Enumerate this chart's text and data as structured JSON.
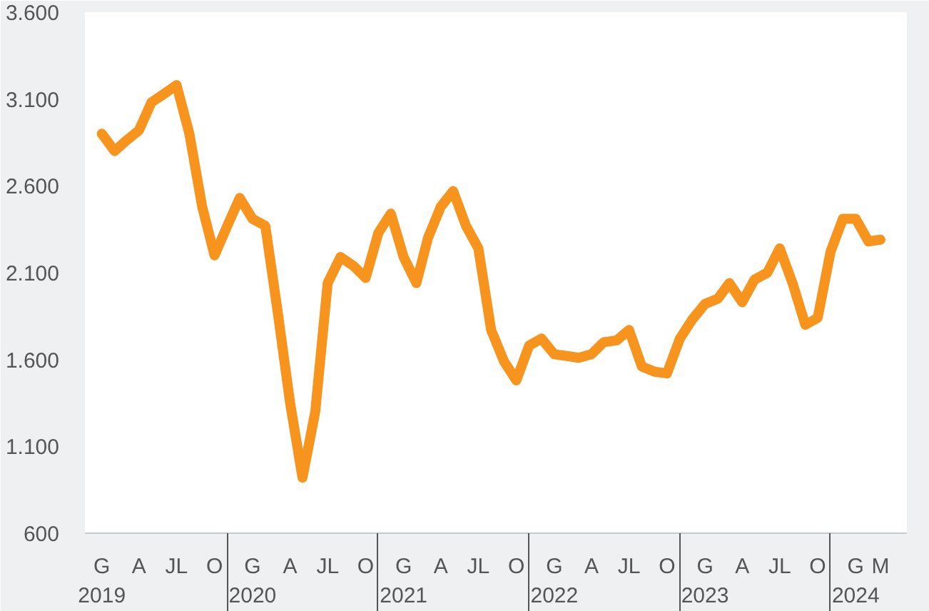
{
  "chart_data": {
    "type": "line",
    "x": [
      "2019-01",
      "2019-02",
      "2019-03",
      "2019-04",
      "2019-05",
      "2019-06",
      "2019-07",
      "2019-08",
      "2019-09",
      "2019-10",
      "2019-11",
      "2019-12",
      "2020-01",
      "2020-02",
      "2020-03",
      "2020-04",
      "2020-05",
      "2020-06",
      "2020-07",
      "2020-08",
      "2020-09",
      "2020-10",
      "2020-11",
      "2020-12",
      "2021-01",
      "2021-02",
      "2021-03",
      "2021-04",
      "2021-05",
      "2021-06",
      "2021-07",
      "2021-08",
      "2021-09",
      "2021-10",
      "2021-11",
      "2021-12",
      "2022-01",
      "2022-02",
      "2022-03",
      "2022-04",
      "2022-05",
      "2022-06",
      "2022-07",
      "2022-08",
      "2022-09",
      "2022-10",
      "2022-11",
      "2022-12",
      "2023-01",
      "2023-02",
      "2023-03",
      "2023-04",
      "2023-05",
      "2023-06",
      "2023-07",
      "2023-08",
      "2023-09",
      "2023-10",
      "2023-11",
      "2023-12",
      "2024-01",
      "2024-02",
      "2024-03"
    ],
    "series": [
      {
        "color": "#f7941d",
        "values": [
          2900,
          2800,
          2860,
          2920,
          3080,
          3130,
          3180,
          2900,
          2480,
          2200,
          2370,
          2530,
          2410,
          2370,
          1890,
          1350,
          920,
          1300,
          2040,
          2190,
          2140,
          2070,
          2330,
          2440,
          2190,
          2040,
          2300,
          2480,
          2570,
          2370,
          2240,
          1770,
          1590,
          1480,
          1680,
          1720,
          1630,
          1620,
          1610,
          1630,
          1700,
          1710,
          1770,
          1560,
          1530,
          1520,
          1720,
          1830,
          1920,
          1950,
          2040,
          1930,
          2060,
          2100,
          2240,
          2040,
          1800,
          1840,
          2220,
          2410,
          2410,
          2280,
          2290
        ]
      }
    ],
    "ylim": [
      600,
      3600
    ],
    "yticks": [
      600,
      {
        "value": 1100,
        "label": "1.100"
      },
      {
        "value": 1600,
        "label": "1.600"
      },
      {
        "value": 2100,
        "label": "2.100"
      },
      {
        "value": 2600,
        "label": "2.600"
      },
      {
        "value": 3100,
        "label": "3.100"
      },
      {
        "value": 3600,
        "label": "3.600"
      }
    ],
    "xlim": [
      "2018-11-21",
      "2024-05-04"
    ],
    "xticks": [
      {
        "value": "2019-01",
        "label": "G\n2019"
      },
      {
        "value": "2019-04",
        "label": "A"
      },
      {
        "value": "2019-07",
        "label": "JL"
      },
      {
        "value": "2019-10",
        "label": "O"
      },
      {
        "value": "2020-01",
        "label": "G\n2020"
      },
      {
        "value": "2020-04",
        "label": "A"
      },
      {
        "value": "2020-07",
        "label": "JL"
      },
      {
        "value": "2020-10",
        "label": "O"
      },
      {
        "value": "2021-01",
        "label": "G\n2021"
      },
      {
        "value": "2021-04",
        "label": "A"
      },
      {
        "value": "2021-07",
        "label": "JL"
      },
      {
        "value": "2021-10",
        "label": "O"
      },
      {
        "value": "2022-01",
        "label": "G\n2022"
      },
      {
        "value": "2022-04",
        "label": "A"
      },
      {
        "value": "2022-07",
        "label": "JL"
      },
      {
        "value": "2022-10",
        "label": "O"
      },
      {
        "value": "2023-01",
        "label": "G\n2023"
      },
      {
        "value": "2023-04",
        "label": "A"
      },
      {
        "value": "2023-07",
        "label": "JL"
      },
      {
        "value": "2023-10",
        "label": "O"
      },
      {
        "value": "2024-01",
        "label": "G\n2024"
      },
      {
        "value": "2024-03",
        "label": "M"
      }
    ],
    "grid": false,
    "marker": "none",
    "line_style": "solid"
  }
}
